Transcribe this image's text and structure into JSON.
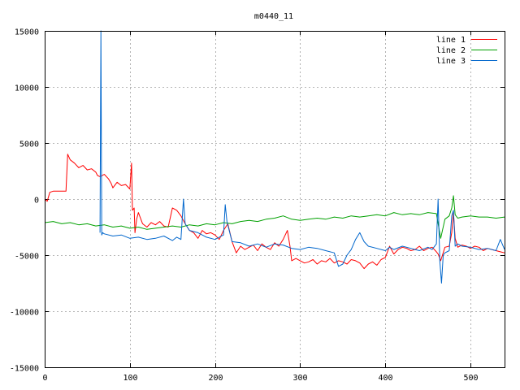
{
  "chart_data": {
    "type": "line",
    "title": "m0440_11",
    "xlabel": "",
    "ylabel": "",
    "xlim": [
      0,
      540
    ],
    "ylim": [
      -15000,
      15000
    ],
    "xticks": [
      0,
      100,
      200,
      300,
      400,
      500
    ],
    "yticks": [
      -15000,
      -10000,
      -5000,
      0,
      5000,
      10000,
      15000
    ],
    "xtick_labels": [
      "0",
      "100",
      "200",
      "300",
      "400",
      "500"
    ],
    "ytick_labels": [
      "-15000",
      "-10000",
      "-5000",
      "0",
      "5000",
      "10000",
      "15000"
    ],
    "grid": true,
    "legend_position": "top-right",
    "series": [
      {
        "name": "line 1",
        "color": "#ff0000",
        "x": [
          0,
          3,
          6,
          10,
          15,
          20,
          25,
          27,
          30,
          35,
          40,
          45,
          50,
          55,
          60,
          62,
          65,
          70,
          75,
          78,
          80,
          85,
          90,
          95,
          100,
          102,
          103,
          105,
          106,
          108,
          110,
          115,
          120,
          125,
          130,
          135,
          140,
          145,
          150,
          155,
          160,
          165,
          170,
          175,
          180,
          185,
          190,
          195,
          200,
          205,
          210,
          215,
          220,
          225,
          230,
          235,
          240,
          245,
          250,
          255,
          260,
          265,
          270,
          275,
          280,
          285,
          288,
          290,
          295,
          300,
          305,
          310,
          315,
          320,
          325,
          330,
          335,
          340,
          345,
          350,
          355,
          360,
          365,
          370,
          375,
          380,
          385,
          390,
          395,
          400,
          405,
          410,
          415,
          420,
          425,
          430,
          435,
          440,
          445,
          450,
          455,
          460,
          462,
          465,
          470,
          475,
          478,
          480,
          482,
          485,
          490,
          495,
          500,
          505,
          510,
          515,
          520,
          525,
          530,
          535,
          540
        ],
        "y": [
          0,
          -200,
          600,
          700,
          700,
          700,
          700,
          4000,
          3500,
          3200,
          2800,
          3000,
          2600,
          2700,
          2400,
          2100,
          2000,
          2200,
          1800,
          1400,
          1000,
          1500,
          1200,
          1300,
          900,
          3200,
          -1000,
          -800,
          -3000,
          -1800,
          -1200,
          -2200,
          -2500,
          -2100,
          -2300,
          -2000,
          -2400,
          -2500,
          -800,
          -1000,
          -1500,
          -2200,
          -2800,
          -3000,
          -3500,
          -2800,
          -3100,
          -3000,
          -3200,
          -3600,
          -2800,
          -2200,
          -3800,
          -4800,
          -4200,
          -4500,
          -4300,
          -4100,
          -4600,
          -4000,
          -4300,
          -4500,
          -3900,
          -4200,
          -3600,
          -2800,
          -4200,
          -5500,
          -5300,
          -5500,
          -5700,
          -5600,
          -5400,
          -5800,
          -5500,
          -5600,
          -5300,
          -5700,
          -5500,
          -5600,
          -5800,
          -5400,
          -5500,
          -5700,
          -6200,
          -5800,
          -5600,
          -5900,
          -5400,
          -5200,
          -4200,
          -4900,
          -4500,
          -4300,
          -4400,
          -4600,
          -4500,
          -4200,
          -4600,
          -4400,
          -4300,
          -4700,
          -4900,
          -5500,
          -4300,
          -4200,
          -3000,
          -1200,
          -3500,
          -4300,
          -4100,
          -4200,
          -4400,
          -4200,
          -4300,
          -4600,
          -4400,
          -4500,
          -4600,
          -4700,
          -4800
        ]
      },
      {
        "name": "line 2",
        "color": "#00a000",
        "x": [
          0,
          10,
          20,
          30,
          40,
          50,
          60,
          70,
          80,
          90,
          100,
          110,
          120,
          130,
          140,
          150,
          160,
          170,
          180,
          190,
          200,
          210,
          220,
          230,
          240,
          250,
          260,
          270,
          280,
          290,
          300,
          310,
          320,
          330,
          340,
          350,
          360,
          370,
          380,
          390,
          400,
          410,
          420,
          430,
          440,
          450,
          460,
          465,
          470,
          475,
          478,
          480,
          482,
          485,
          490,
          500,
          510,
          520,
          530,
          540
        ],
        "y": [
          -2100,
          -2000,
          -2200,
          -2100,
          -2300,
          -2200,
          -2400,
          -2300,
          -2500,
          -2400,
          -2600,
          -2500,
          -2700,
          -2600,
          -2500,
          -2400,
          -2500,
          -2300,
          -2400,
          -2200,
          -2300,
          -2100,
          -2200,
          -2000,
          -1900,
          -2000,
          -1800,
          -1700,
          -1500,
          -1800,
          -1900,
          -1800,
          -1700,
          -1800,
          -1600,
          -1700,
          -1500,
          -1600,
          -1500,
          -1400,
          -1500,
          -1200,
          -1400,
          -1300,
          -1400,
          -1200,
          -1300,
          -3500,
          -1800,
          -1500,
          -800,
          300,
          -1400,
          -1700,
          -1600,
          -1500,
          -1600,
          -1600,
          -1700,
          -1600
        ]
      },
      {
        "name": "line 3",
        "color": "#0066cc",
        "x": [
          65,
          66,
          67,
          68,
          70,
          80,
          90,
          100,
          110,
          120,
          130,
          140,
          150,
          155,
          160,
          163,
          165,
          170,
          180,
          190,
          200,
          210,
          212,
          214,
          220,
          230,
          240,
          250,
          260,
          270,
          280,
          290,
          300,
          310,
          320,
          330,
          340,
          345,
          350,
          355,
          360,
          365,
          370,
          375,
          380,
          390,
          400,
          405,
          410,
          420,
          430,
          440,
          450,
          455,
          460,
          462,
          464,
          466,
          468,
          470,
          475,
          478,
          480,
          482,
          485,
          490,
          500,
          510,
          520,
          530,
          535,
          540
        ],
        "y": [
          -3000,
          15000,
          -3200,
          -3000,
          -3100,
          -3300,
          -3200,
          -3500,
          -3400,
          -3600,
          -3500,
          -3300,
          -3700,
          -3400,
          -3600,
          0,
          -2200,
          -2800,
          -3000,
          -3400,
          -3600,
          -3200,
          -500,
          -2000,
          -3800,
          -3900,
          -4200,
          -4000,
          -4300,
          -4000,
          -4100,
          -4400,
          -4500,
          -4300,
          -4400,
          -4600,
          -4800,
          -6000,
          -5800,
          -5000,
          -4500,
          -3600,
          -3000,
          -3800,
          -4200,
          -4400,
          -4600,
          -4300,
          -4500,
          -4200,
          -4400,
          -4600,
          -4300,
          -4500,
          -4000,
          0,
          -5500,
          -7500,
          -5000,
          -4800,
          -4600,
          -1500,
          -1000,
          -4200,
          -4000,
          -4200,
          -4300,
          -4500,
          -4400,
          -4600,
          -3600,
          -4500
        ]
      }
    ]
  }
}
